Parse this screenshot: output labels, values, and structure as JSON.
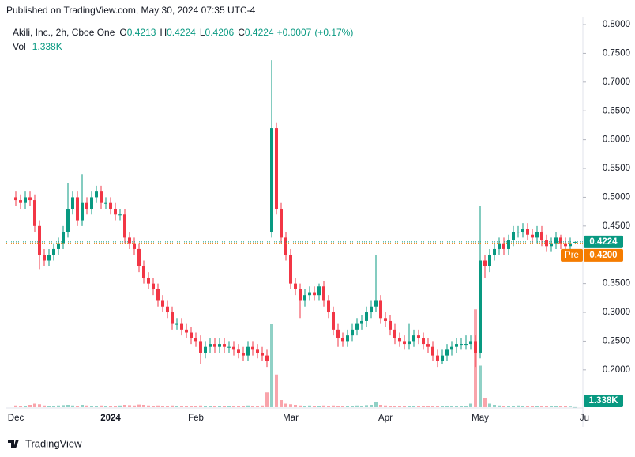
{
  "published": "Published on TradingView.com, May 30, 2024 07:35 UTC-4",
  "brand": "TradingView",
  "chart_data": {
    "type": "candlestick",
    "title": "Akili, Inc., 2h, Cboe One",
    "ohlc_labels": [
      "O",
      "H",
      "L",
      "C"
    ],
    "change": {
      "value": 0.0007,
      "label": "+0.0007"
    },
    "change_pct": {
      "value": 0.17,
      "label": "(+0.17%)"
    },
    "volume_label": "Vol",
    "volume_last_label": "1.338K",
    "pre_market": {
      "label": "Pre",
      "value": 0.42,
      "value_label": "0.4200",
      "color": "#f57c00"
    },
    "up_color": "#089981",
    "down_color": "#f23645",
    "ylim": [
      0.1352,
      0.8124
    ],
    "yticks": [
      {
        "value": 0.8,
        "label": "0.8000"
      },
      {
        "value": 0.75,
        "label": "0.7500"
      },
      {
        "value": 0.7,
        "label": "0.7000"
      },
      {
        "value": 0.65,
        "label": "0.6500"
      },
      {
        "value": 0.6,
        "label": "0.6000"
      },
      {
        "value": 0.55,
        "label": "0.5500"
      },
      {
        "value": 0.5,
        "label": "0.5000"
      },
      {
        "value": 0.45,
        "label": "0.4500"
      },
      {
        "value": 0.35,
        "label": "0.3500"
      },
      {
        "value": 0.3,
        "label": "0.3000"
      },
      {
        "value": 0.25,
        "label": "0.2500"
      },
      {
        "value": 0.2,
        "label": "0.2000"
      }
    ],
    "volume_ylim": [
      0,
      2000000
    ],
    "grid": false,
    "categories": [
      "Dec",
      null,
      null,
      null,
      null,
      null,
      null,
      null,
      null,
      null,
      null,
      null,
      null,
      null,
      null,
      null,
      null,
      null,
      null,
      null,
      "2024",
      null,
      null,
      null,
      null,
      null,
      null,
      null,
      null,
      null,
      null,
      null,
      null,
      null,
      null,
      null,
      null,
      null,
      "Feb",
      null,
      null,
      null,
      null,
      null,
      null,
      null,
      null,
      null,
      null,
      null,
      null,
      null,
      null,
      null,
      null,
      null,
      null,
      null,
      "Mar",
      null,
      null,
      null,
      null,
      null,
      null,
      null,
      null,
      null,
      null,
      null,
      null,
      null,
      null,
      null,
      null,
      null,
      null,
      null,
      "Apr",
      null,
      null,
      null,
      null,
      null,
      null,
      null,
      null,
      null,
      null,
      null,
      null,
      null,
      null,
      null,
      null,
      null,
      null,
      null,
      "May",
      null,
      null,
      null,
      null,
      null,
      null,
      null,
      null,
      null,
      null,
      null,
      null,
      null,
      null,
      null,
      null,
      null,
      null,
      null,
      null,
      null,
      "Ju"
    ],
    "open": [
      0.5,
      0.495,
      0.49,
      0.5,
      0.495,
      0.45,
      0.4,
      0.39,
      0.4,
      0.41,
      0.42,
      0.44,
      0.48,
      0.5,
      0.46,
      0.49,
      0.48,
      0.5,
      0.51,
      0.49,
      0.49,
      0.48,
      0.47,
      0.47,
      0.43,
      0.42,
      0.41,
      0.38,
      0.36,
      0.35,
      0.34,
      0.32,
      0.31,
      0.3,
      0.28,
      0.28,
      0.27,
      0.265,
      0.255,
      0.25,
      0.23,
      0.24,
      0.245,
      0.24,
      0.245,
      0.24,
      0.24,
      0.235,
      0.23,
      0.225,
      0.24,
      0.235,
      0.23,
      0.225,
      0.44,
      0.62,
      0.48,
      0.43,
      0.4,
      0.35,
      0.34,
      0.32,
      0.33,
      0.335,
      0.33,
      0.345,
      0.32,
      0.3,
      0.27,
      0.255,
      0.25,
      0.26,
      0.27,
      0.28,
      0.285,
      0.3,
      0.31,
      0.32,
      0.29,
      0.285,
      0.27,
      0.255,
      0.25,
      0.245,
      0.25,
      0.26,
      0.255,
      0.245,
      0.24,
      0.225,
      0.215,
      0.225,
      0.235,
      0.24,
      0.245,
      0.245,
      0.245,
      0.25,
      0.23,
      0.39,
      0.38,
      0.4,
      0.41,
      0.42,
      0.41,
      0.425,
      0.44,
      0.44,
      0.445,
      0.435,
      0.43,
      0.44,
      0.425,
      0.415,
      0.42,
      0.43,
      0.42,
      0.415,
      0.4213,
      null,
      null
    ],
    "high": [
      0.51,
      0.505,
      0.51,
      0.51,
      0.505,
      0.46,
      0.41,
      0.41,
      0.42,
      0.43,
      0.45,
      0.525,
      0.51,
      0.51,
      0.54,
      0.5,
      0.51,
      0.52,
      0.52,
      0.5,
      0.5,
      0.49,
      0.48,
      0.48,
      0.44,
      0.43,
      0.42,
      0.39,
      0.37,
      0.36,
      0.35,
      0.33,
      0.32,
      0.31,
      0.29,
      0.29,
      0.28,
      0.275,
      0.265,
      0.26,
      0.25,
      0.255,
      0.255,
      0.255,
      0.255,
      0.25,
      0.25,
      0.245,
      0.24,
      0.25,
      0.25,
      0.245,
      0.24,
      0.235,
      0.738,
      0.63,
      0.49,
      0.44,
      0.41,
      0.36,
      0.35,
      0.34,
      0.345,
      0.345,
      0.35,
      0.355,
      0.33,
      0.31,
      0.28,
      0.265,
      0.27,
      0.28,
      0.29,
      0.295,
      0.31,
      0.32,
      0.4,
      0.33,
      0.3,
      0.295,
      0.28,
      0.265,
      0.26,
      0.28,
      0.27,
      0.27,
      0.265,
      0.255,
      0.25,
      0.235,
      0.235,
      0.245,
      0.25,
      0.255,
      0.255,
      0.26,
      0.26,
      0.26,
      0.485,
      0.4,
      0.41,
      0.42,
      0.43,
      0.43,
      0.435,
      0.45,
      0.45,
      0.455,
      0.455,
      0.445,
      0.45,
      0.45,
      0.435,
      0.43,
      0.44,
      0.435,
      0.43,
      0.43,
      0.4224,
      null,
      null
    ],
    "low": [
      0.485,
      0.48,
      0.48,
      0.485,
      0.44,
      0.375,
      0.38,
      0.38,
      0.39,
      0.4,
      0.41,
      0.43,
      0.47,
      0.45,
      0.45,
      0.47,
      0.47,
      0.49,
      0.48,
      0.48,
      0.47,
      0.46,
      0.46,
      0.42,
      0.41,
      0.4,
      0.37,
      0.35,
      0.34,
      0.33,
      0.31,
      0.3,
      0.29,
      0.27,
      0.27,
      0.26,
      0.255,
      0.245,
      0.24,
      0.21,
      0.22,
      0.23,
      0.23,
      0.23,
      0.23,
      0.23,
      0.225,
      0.22,
      0.215,
      0.215,
      0.225,
      0.22,
      0.215,
      0.205,
      0.43,
      0.47,
      0.42,
      0.39,
      0.34,
      0.33,
      0.29,
      0.31,
      0.32,
      0.32,
      0.32,
      0.31,
      0.29,
      0.26,
      0.24,
      0.24,
      0.24,
      0.25,
      0.26,
      0.27,
      0.275,
      0.29,
      0.3,
      0.28,
      0.275,
      0.26,
      0.245,
      0.24,
      0.235,
      0.235,
      0.24,
      0.245,
      0.235,
      0.23,
      0.215,
      0.205,
      0.21,
      0.215,
      0.225,
      0.23,
      0.235,
      0.235,
      0.235,
      0.205,
      0.22,
      0.36,
      0.37,
      0.39,
      0.4,
      0.4,
      0.4,
      0.415,
      0.43,
      0.43,
      0.425,
      0.42,
      0.42,
      0.415,
      0.405,
      0.405,
      0.41,
      0.41,
      0.405,
      0.405,
      0.4206,
      null,
      null
    ],
    "close": [
      0.495,
      0.49,
      0.5,
      0.495,
      0.45,
      0.4,
      0.39,
      0.4,
      0.41,
      0.42,
      0.44,
      0.48,
      0.5,
      0.46,
      0.49,
      0.48,
      0.5,
      0.51,
      0.49,
      0.49,
      0.48,
      0.47,
      0.47,
      0.43,
      0.42,
      0.41,
      0.38,
      0.36,
      0.35,
      0.34,
      0.32,
      0.31,
      0.3,
      0.28,
      0.28,
      0.27,
      0.265,
      0.255,
      0.25,
      0.23,
      0.24,
      0.245,
      0.24,
      0.245,
      0.24,
      0.24,
      0.235,
      0.23,
      0.225,
      0.24,
      0.235,
      0.23,
      0.225,
      0.215,
      0.62,
      0.48,
      0.43,
      0.4,
      0.35,
      0.34,
      0.32,
      0.33,
      0.335,
      0.33,
      0.345,
      0.32,
      0.3,
      0.27,
      0.255,
      0.25,
      0.26,
      0.27,
      0.28,
      0.285,
      0.3,
      0.31,
      0.32,
      0.29,
      0.285,
      0.27,
      0.255,
      0.25,
      0.245,
      0.25,
      0.26,
      0.255,
      0.245,
      0.24,
      0.225,
      0.215,
      0.225,
      0.235,
      0.24,
      0.245,
      0.245,
      0.245,
      0.25,
      0.23,
      0.39,
      0.38,
      0.4,
      0.41,
      0.42,
      0.41,
      0.425,
      0.44,
      0.44,
      0.445,
      0.435,
      0.43,
      0.44,
      0.425,
      0.415,
      0.42,
      0.43,
      0.42,
      0.415,
      0.42,
      0.4224,
      null,
      null
    ],
    "volume": [
      30000,
      20000,
      25000,
      40000,
      60000,
      50000,
      30000,
      25000,
      20000,
      30000,
      35000,
      40000,
      30000,
      25000,
      40000,
      30000,
      20000,
      25000,
      30000,
      20000,
      25000,
      20000,
      30000,
      40000,
      35000,
      30000,
      45000,
      40000,
      30000,
      25000,
      30000,
      20000,
      25000,
      30000,
      20000,
      25000,
      20000,
      15000,
      20000,
      30000,
      20000,
      15000,
      20000,
      15000,
      20000,
      15000,
      20000,
      25000,
      20000,
      30000,
      20000,
      25000,
      30000,
      250000,
      1400000,
      550000,
      120000,
      60000,
      50000,
      40000,
      30000,
      25000,
      30000,
      20000,
      25000,
      30000,
      25000,
      30000,
      20000,
      15000,
      20000,
      25000,
      30000,
      25000,
      35000,
      40000,
      90000,
      40000,
      30000,
      25000,
      20000,
      25000,
      20000,
      15000,
      20000,
      15000,
      20000,
      15000,
      20000,
      25000,
      20000,
      15000,
      20000,
      15000,
      20000,
      25000,
      60000,
      1650000,
      700000,
      160000,
      60000,
      40000,
      30000,
      25000,
      20000,
      25000,
      30000,
      20000,
      15000,
      20000,
      25000,
      20000,
      15000,
      20000,
      15000,
      20000,
      15000,
      10000,
      1338,
      null,
      null
    ]
  }
}
